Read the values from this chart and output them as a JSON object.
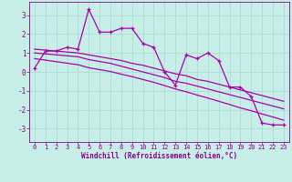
{
  "x": [
    0,
    1,
    2,
    3,
    4,
    5,
    6,
    7,
    8,
    9,
    10,
    11,
    12,
    13,
    14,
    15,
    16,
    17,
    18,
    19,
    20,
    21,
    22,
    23
  ],
  "y_main": [
    0.2,
    1.1,
    1.1,
    1.3,
    1.2,
    3.3,
    2.1,
    2.1,
    2.3,
    2.3,
    1.5,
    1.3,
    0.0,
    -0.7,
    0.9,
    0.7,
    1.0,
    0.6,
    -0.8,
    -0.8,
    -1.3,
    -2.7,
    -2.8,
    -2.8
  ],
  "y_trend1": [
    1.2,
    1.15,
    1.1,
    1.05,
    1.0,
    0.9,
    0.8,
    0.7,
    0.6,
    0.45,
    0.35,
    0.2,
    0.05,
    -0.1,
    -0.2,
    -0.4,
    -0.5,
    -0.65,
    -0.8,
    -0.95,
    -1.1,
    -1.25,
    -1.4,
    -1.55
  ],
  "y_trend2": [
    1.0,
    0.95,
    0.9,
    0.85,
    0.8,
    0.65,
    0.55,
    0.45,
    0.3,
    0.15,
    0.0,
    -0.15,
    -0.3,
    -0.5,
    -0.6,
    -0.75,
    -0.9,
    -1.05,
    -1.2,
    -1.35,
    -1.5,
    -1.65,
    -1.8,
    -1.95
  ],
  "y_trend3": [
    0.7,
    0.62,
    0.54,
    0.46,
    0.38,
    0.22,
    0.12,
    0.02,
    -0.12,
    -0.25,
    -0.4,
    -0.55,
    -0.72,
    -0.9,
    -1.05,
    -1.22,
    -1.38,
    -1.55,
    -1.72,
    -1.9,
    -2.05,
    -2.22,
    -2.38,
    -2.55
  ],
  "line_color": "#AA00AA",
  "bg_color": "#C8EEE8",
  "grid_color": "#A8D8D0",
  "axis_color": "#880088",
  "xlabel": "Windchill (Refroidissement éolien,°C)",
  "ylim": [
    -3.7,
    3.7
  ],
  "xlim": [
    -0.5,
    23.5
  ],
  "yticks": [
    -3,
    -2,
    -1,
    0,
    1,
    2,
    3
  ],
  "xticks": [
    0,
    1,
    2,
    3,
    4,
    5,
    6,
    7,
    8,
    9,
    10,
    11,
    12,
    13,
    14,
    15,
    16,
    17,
    18,
    19,
    20,
    21,
    22,
    23
  ],
  "marker": "+"
}
